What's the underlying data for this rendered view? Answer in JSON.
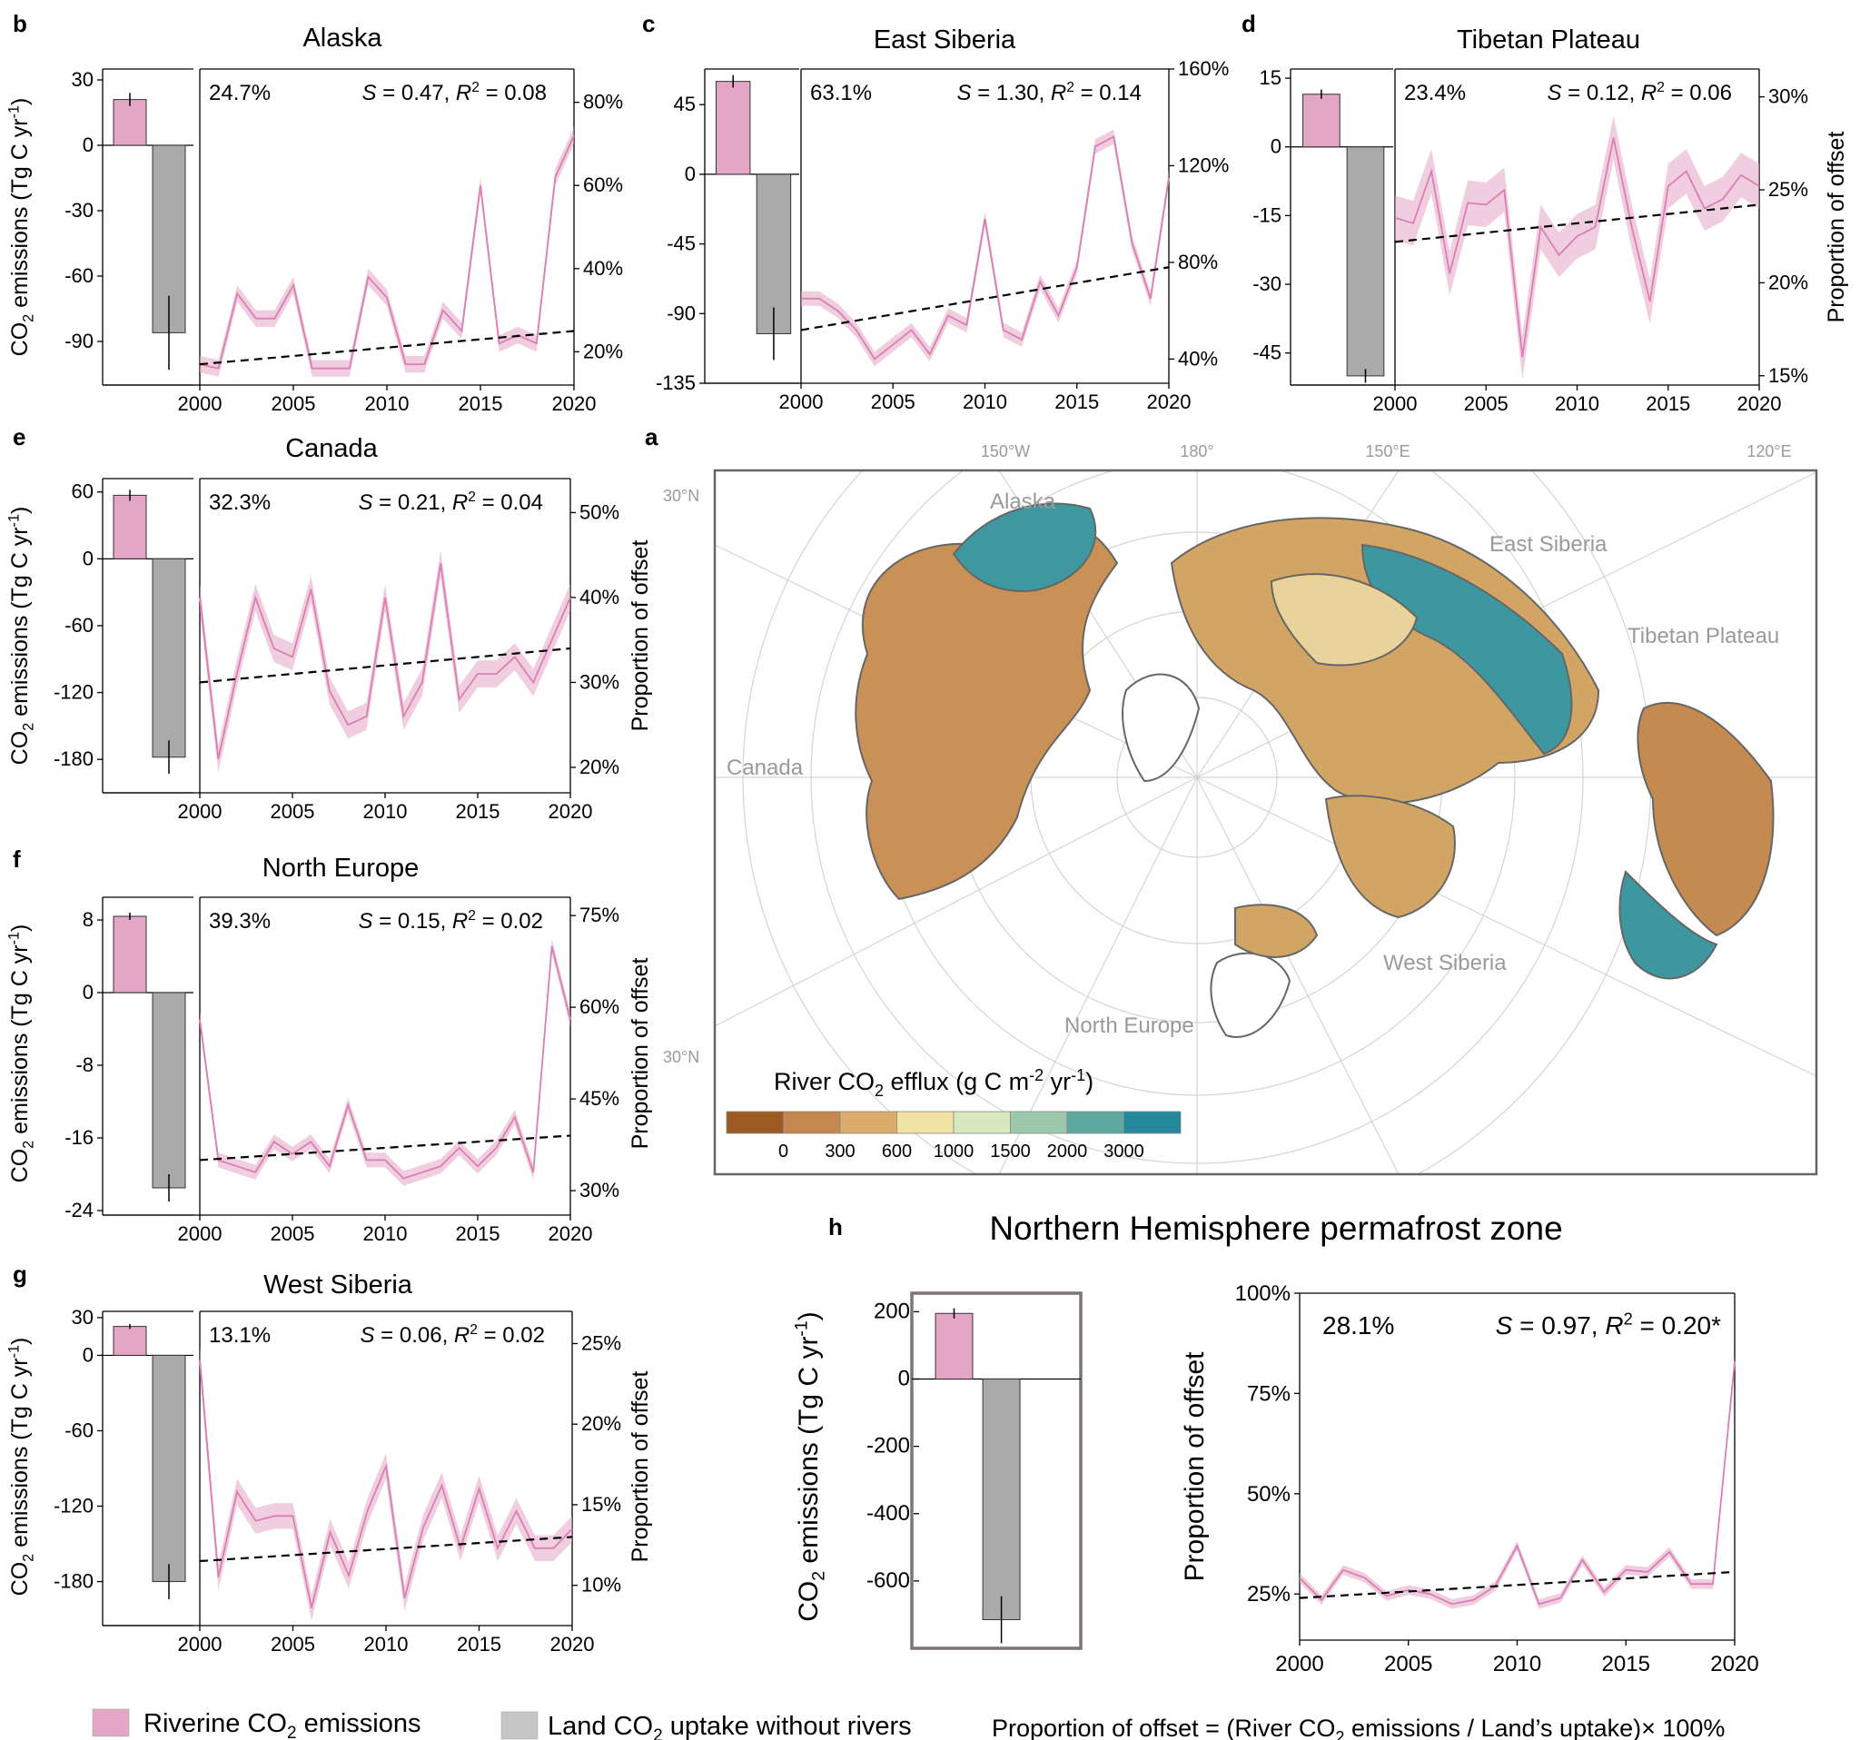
{
  "colors": {
    "riverine": "#e3a6c6",
    "riverine_line": "#d97fb3",
    "land": "#aaaaaa",
    "map_labels": "#9a9a9a",
    "colorbar": [
      "#9b5a22",
      "#c4884f",
      "#dcac6c",
      "#f1e3a6",
      "#d8e9c0",
      "#9cc8ab",
      "#5da9a0",
      "#22889a"
    ]
  },
  "common": {
    "bar_ylabel": "CO2 emissions (Tg C yr-1)",
    "right_ylabel": "Proportion of offset"
  },
  "legend": {
    "riverine": "Riverine CO2 emissions",
    "land": "Land CO2 uptake without rivers",
    "formula": "Proportion of offset = (River CO2 emissions / Land’s uptake)× 100%"
  },
  "map": {
    "letter": "a",
    "top_lon_labels": [
      "150°W",
      "180°",
      "150°E",
      "120°E"
    ],
    "lat_labels": [
      "30°N",
      "30°N"
    ],
    "region_labels": [
      "Alaska",
      "East Siberia",
      "Tibetan Plateau",
      "Canada",
      "West Siberia",
      "North Europe"
    ],
    "colorbar_title": "River CO2 efflux (g C m-2 yr-1)",
    "colorbar_ticks": [
      "0",
      "300",
      "600",
      "1000",
      "1500",
      "2000",
      "3000"
    ]
  },
  "chart_data": [
    {
      "id": "b",
      "letter": "b",
      "type": "bar+line",
      "title": "Alaska",
      "pct": "24.7%",
      "stats": "S = 0.47, R2 = 0.08",
      "bar_ylim": [
        -110,
        35
      ],
      "bar_yticks": [
        30,
        0,
        -30,
        -60,
        -90
      ],
      "bars": {
        "riverine": 21,
        "riverine_err": 3,
        "land": -86,
        "land_err": 17
      },
      "line_ylim": [
        12,
        88
      ],
      "line_yticks": [
        20,
        40,
        60,
        80
      ],
      "xlim": [
        2000,
        2020
      ],
      "xticks": [
        2000,
        2005,
        2010,
        2015,
        2020
      ],
      "x": [
        2000,
        2001,
        2002,
        2003,
        2004,
        2005,
        2006,
        2007,
        2008,
        2009,
        2010,
        2011,
        2012,
        2013,
        2014,
        2015,
        2016,
        2017,
        2018,
        2019,
        2020
      ],
      "values": [
        17,
        16,
        34,
        28,
        28,
        36,
        16,
        16,
        16,
        38,
        33,
        17,
        17,
        30,
        25,
        60,
        22,
        24,
        22,
        62,
        72
      ],
      "band": 2,
      "trend": [
        17,
        25
      ]
    },
    {
      "id": "c",
      "letter": "c",
      "type": "bar+line",
      "title": "East Siberia",
      "pct": "63.1%",
      "stats": "S = 1.30, R2 = 0.14",
      "bar_ylim": [
        -135,
        68
      ],
      "bar_yticks": [
        45,
        0,
        -45,
        -90,
        -135
      ],
      "bars": {
        "riverine": 60,
        "riverine_err": 4,
        "land": -103,
        "land_err": 17
      },
      "line_ylim": [
        30,
        160
      ],
      "line_yticks": [
        40,
        80,
        120,
        160
      ],
      "xlim": [
        2000,
        2020
      ],
      "xticks": [
        2000,
        2005,
        2010,
        2015,
        2020
      ],
      "x": [
        2000,
        2001,
        2002,
        2003,
        2004,
        2005,
        2006,
        2007,
        2008,
        2009,
        2010,
        2011,
        2012,
        2013,
        2014,
        2015,
        2016,
        2017,
        2018,
        2019,
        2020
      ],
      "values": [
        65,
        65,
        60,
        52,
        40,
        46,
        52,
        42,
        58,
        54,
        98,
        52,
        48,
        72,
        58,
        78,
        128,
        132,
        88,
        65,
        115
      ],
      "band": 3,
      "trend": [
        52,
        78
      ]
    },
    {
      "id": "d",
      "letter": "d",
      "type": "bar+line",
      "title": "Tibetan Plateau",
      "pct": "23.4%",
      "stats": "S = 0.12, R2 = 0.06",
      "bar_ylim": [
        -52,
        17
      ],
      "bar_yticks": [
        15,
        0,
        -15,
        -30,
        -45
      ],
      "bars": {
        "riverine": 11.5,
        "riverine_err": 1,
        "land": -50,
        "land_err": 1.5
      },
      "line_ylim": [
        14.5,
        31.5
      ],
      "line_yticks": [
        15,
        20,
        25,
        30
      ],
      "xlim": [
        2000,
        2020
      ],
      "xticks": [
        2000,
        2005,
        2010,
        2015,
        2020
      ],
      "x": [
        2000,
        2001,
        2002,
        2003,
        2004,
        2005,
        2006,
        2007,
        2008,
        2009,
        2010,
        2011,
        2012,
        2013,
        2014,
        2015,
        2016,
        2017,
        2018,
        2019,
        2020
      ],
      "values": [
        23.5,
        23.2,
        26,
        20.5,
        24.3,
        24.2,
        25,
        16,
        23,
        21.5,
        22.5,
        23,
        27.8,
        23,
        19,
        25.2,
        26,
        24,
        24.5,
        25.8,
        25.2
      ],
      "band": 1.2,
      "trend": [
        22.2,
        24.2
      ]
    },
    {
      "id": "e",
      "letter": "e",
      "type": "bar+line",
      "title": "Canada",
      "pct": "32.3%",
      "stats": "S = 0.21, R2 = 0.04",
      "bar_ylim": [
        -210,
        72
      ],
      "bar_yticks": [
        60,
        0,
        -60,
        -120,
        -180
      ],
      "bars": {
        "riverine": 57,
        "riverine_err": 5,
        "land": -178,
        "land_err": 15
      },
      "line_ylim": [
        17,
        54
      ],
      "line_yticks": [
        20,
        30,
        40,
        50
      ],
      "xlim": [
        2000,
        2020
      ],
      "xticks": [
        2000,
        2005,
        2010,
        2015,
        2020
      ],
      "x": [
        2000,
        2001,
        2002,
        2003,
        2004,
        2005,
        2006,
        2007,
        2008,
        2009,
        2010,
        2011,
        2012,
        2013,
        2014,
        2015,
        2016,
        2017,
        2018,
        2019,
        2020
      ],
      "values": [
        40,
        21,
        31,
        40,
        34,
        33,
        41,
        29,
        25,
        26,
        40,
        26,
        30,
        44,
        28,
        31,
        31,
        33,
        30,
        35,
        40
      ],
      "band": 1.6,
      "trend": [
        30,
        34
      ]
    },
    {
      "id": "f",
      "letter": "f",
      "type": "bar+line",
      "title": "North Europe",
      "pct": "39.3%",
      "stats": "S = 0.15, R2 = 0.02",
      "bar_ylim": [
        -24.5,
        10.5
      ],
      "bar_yticks": [
        8,
        0,
        -8,
        -16,
        -24
      ],
      "bars": {
        "riverine": 8.4,
        "riverine_err": 0.4,
        "land": -21.5,
        "land_err": 1.5
      },
      "line_ylim": [
        26,
        78
      ],
      "line_yticks": [
        30,
        45,
        60,
        75
      ],
      "xlim": [
        2000,
        2020
      ],
      "xticks": [
        2000,
        2005,
        2010,
        2015,
        2020
      ],
      "x": [
        2000,
        2001,
        2002,
        2003,
        2004,
        2005,
        2006,
        2007,
        2008,
        2009,
        2010,
        2011,
        2012,
        2013,
        2014,
        2015,
        2016,
        2017,
        2018,
        2019,
        2020
      ],
      "values": [
        58,
        35,
        34,
        33,
        38,
        36,
        38,
        34,
        44,
        35,
        35,
        32,
        33,
        34,
        37,
        34,
        37,
        42,
        33,
        70,
        58
      ],
      "band": 1.2,
      "trend": [
        35,
        39
      ]
    },
    {
      "id": "g",
      "letter": "g",
      "type": "bar+line",
      "title": "West Siberia",
      "pct": "13.1%",
      "stats": "S = 0.06, R2 = 0.02",
      "bar_ylim": [
        -215,
        35
      ],
      "bar_yticks": [
        30,
        0,
        -60,
        -120,
        -180
      ],
      "bars": {
        "riverine": 23,
        "riverine_err": 2,
        "land": -180,
        "land_err": 14
      },
      "line_ylim": [
        7.5,
        27
      ],
      "line_yticks": [
        10,
        15,
        20,
        25
      ],
      "xlim": [
        2000,
        2020
      ],
      "xticks": [
        2000,
        2005,
        2010,
        2015,
        2020
      ],
      "x": [
        2000,
        2001,
        2002,
        2003,
        2004,
        2005,
        2006,
        2007,
        2008,
        2009,
        2010,
        2011,
        2012,
        2013,
        2014,
        2015,
        2016,
        2017,
        2018,
        2019,
        2020
      ],
      "values": [
        24,
        10.5,
        15.8,
        14,
        14.3,
        14.3,
        8.6,
        13.3,
        10.6,
        14.6,
        17.4,
        9.2,
        13.6,
        16.2,
        12.3,
        16,
        12.3,
        14.6,
        12.3,
        12.3,
        13.5
      ],
      "band": 0.8,
      "trend": [
        11.5,
        13
      ]
    },
    {
      "id": "h",
      "letter": "h",
      "type": "bar+line",
      "title": "Northern Hemisphere permafrost zone",
      "pct": "28.1%",
      "stats": "S = 0.97, R2 = 0.20*",
      "bar_ylim": [
        -800,
        255
      ],
      "bar_yticks": [
        200,
        0,
        -200,
        -400,
        -600
      ],
      "bars": {
        "riverine": 195,
        "riverine_err": 15,
        "land": -715,
        "land_err": 70
      },
      "line_ylim": [
        13.5,
        100
      ],
      "line_yticks": [
        25,
        50,
        75,
        100
      ],
      "xlim": [
        2000,
        2020
      ],
      "xticks": [
        2000,
        2005,
        2010,
        2015,
        2020
      ],
      "x": [
        2000,
        2001,
        2002,
        2003,
        2004,
        2005,
        2006,
        2007,
        2008,
        2009,
        2010,
        2011,
        2012,
        2013,
        2014,
        2015,
        2016,
        2017,
        2018,
        2019,
        2020
      ],
      "values": [
        29,
        23.5,
        31,
        29,
        24.5,
        26,
        25,
        22.5,
        23.5,
        27,
        37,
        22.5,
        24,
        33.5,
        25.5,
        31,
        30.5,
        35.5,
        27.5,
        27.5,
        83
      ],
      "band": 1.2,
      "trend": [
        24,
        30.5
      ]
    }
  ]
}
